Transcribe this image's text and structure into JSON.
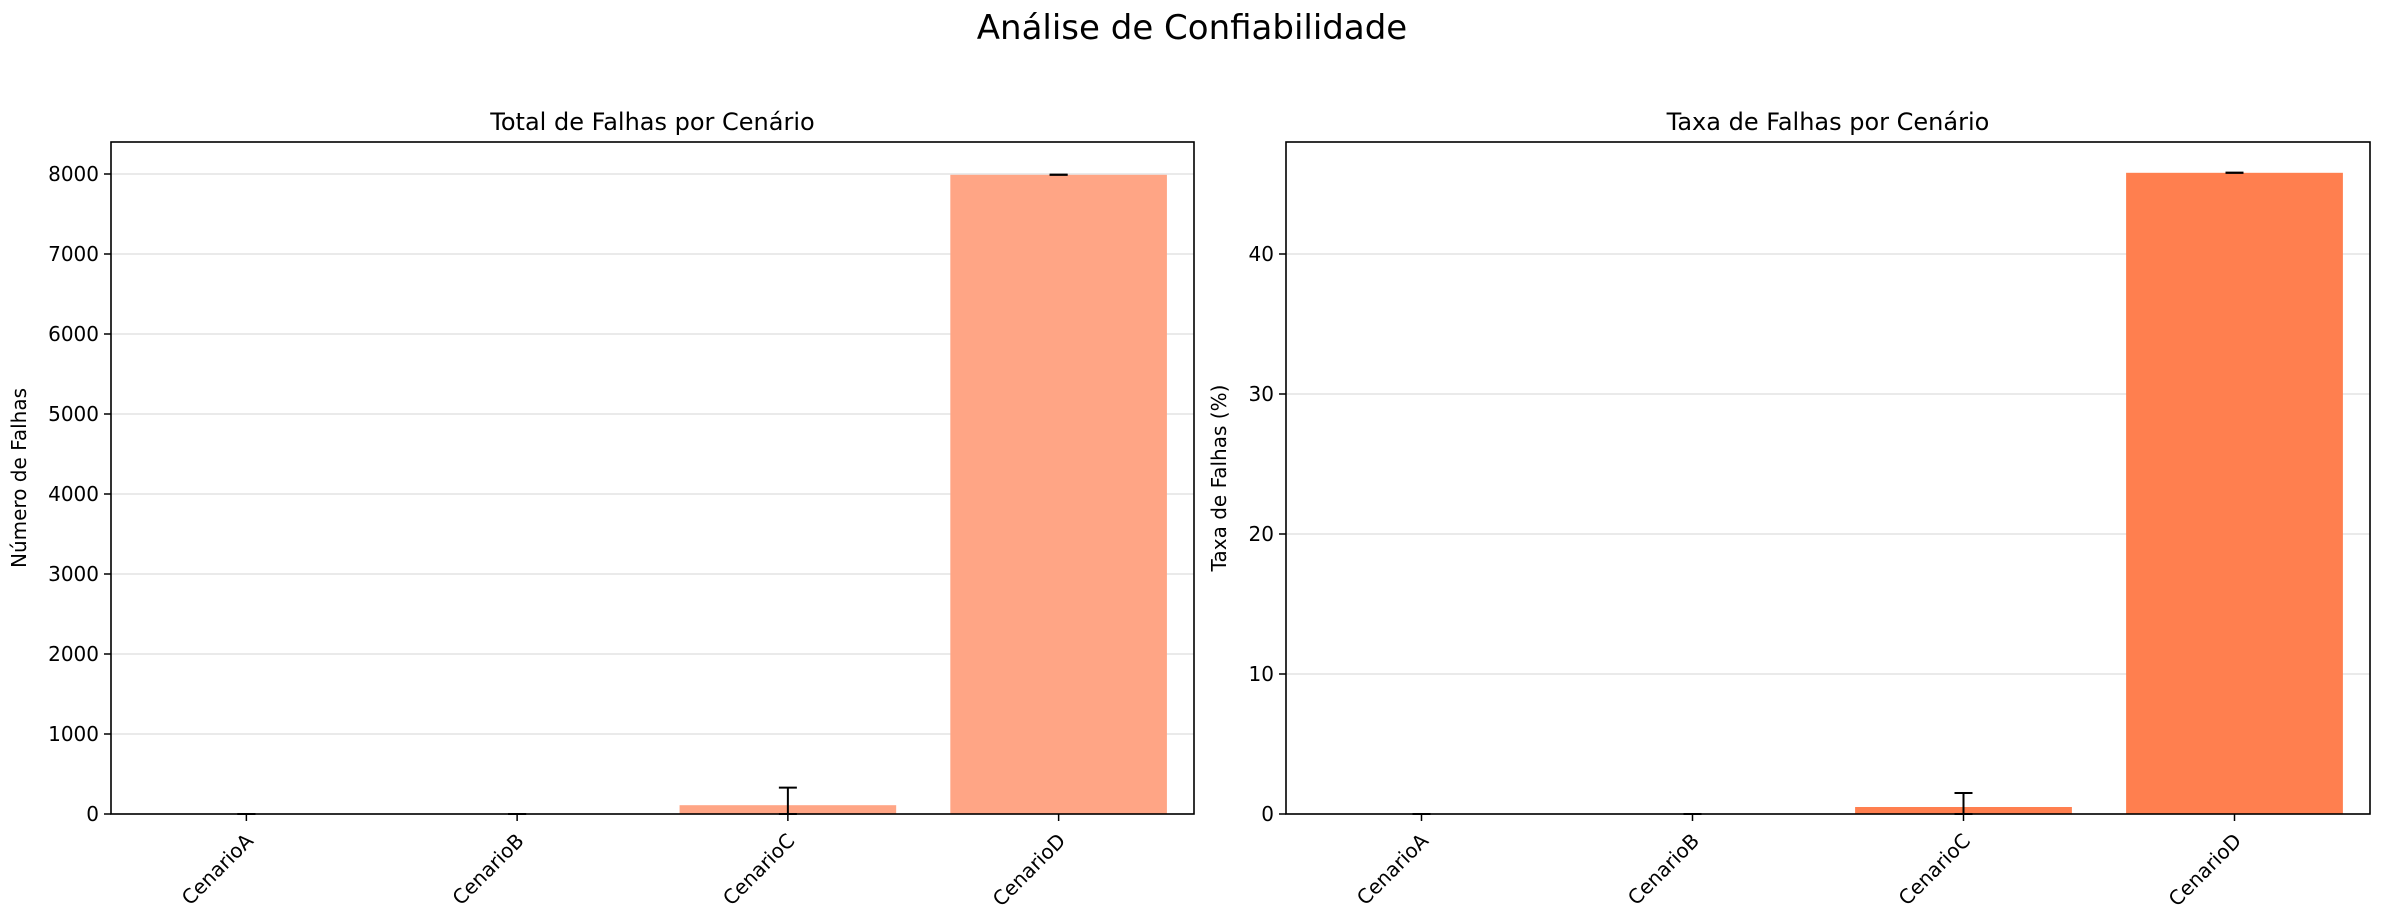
{
  "figure": {
    "title": "Análise de Confiabilidade"
  },
  "chart_data": [
    {
      "type": "bar",
      "title": "Total de Falhas por Cenário",
      "xlabel": "",
      "ylabel": "Número de Falhas",
      "categories": [
        "CenarioA",
        "CenarioB",
        "CenarioC",
        "CenarioD"
      ],
      "values": [
        0,
        0,
        110,
        7990
      ],
      "errors": [
        0,
        0,
        220,
        0
      ],
      "ylim": [
        0,
        8400
      ],
      "yticks": [
        0,
        1000,
        2000,
        3000,
        4000,
        5000,
        6000,
        7000,
        8000
      ],
      "grid": "y",
      "bar_color": "#ffa585"
    },
    {
      "type": "bar",
      "title": "Taxa de Falhas por Cenário",
      "xlabel": "",
      "ylabel": "Taxa de Falhas (%)",
      "categories": [
        "CenarioA",
        "CenarioB",
        "CenarioC",
        "CenarioD"
      ],
      "values": [
        0,
        0,
        0.5,
        45.8
      ],
      "errors": [
        0,
        0,
        1.0,
        0
      ],
      "ylim": [
        0,
        48
      ],
      "yticks": [
        0,
        10,
        20,
        30,
        40
      ],
      "grid": "y",
      "bar_color": "#ff7f4f"
    }
  ]
}
